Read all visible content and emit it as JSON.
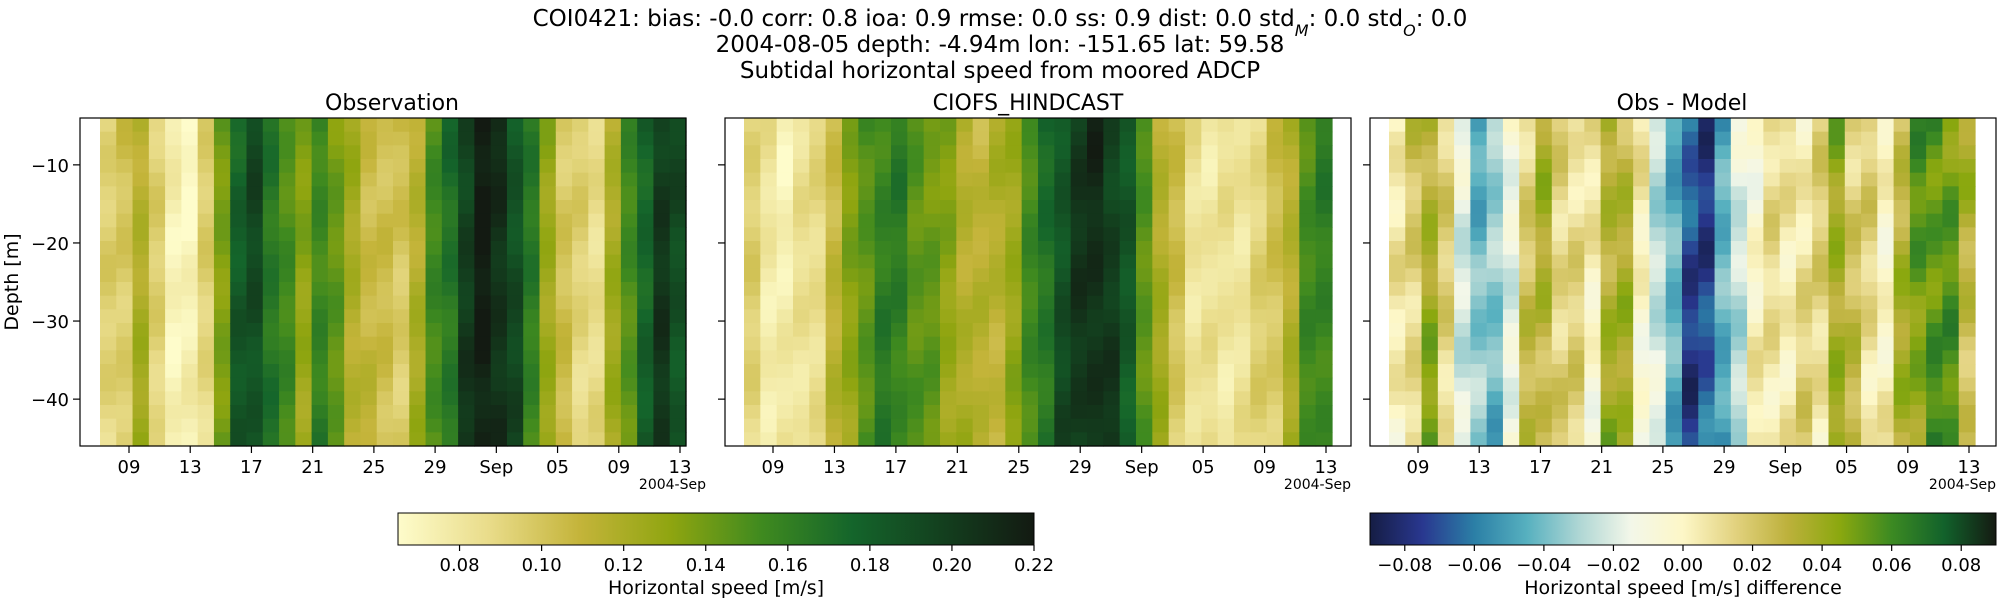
{
  "header": {
    "line1": "COI0421: bias: -0.0  corr: 0.8  ioa: 0.9  rmse: 0.0  ss: 0.9  dist: 0.0  std_M: 0.0  std_O: 0.0",
    "line2": "2004-08-05 depth: -4.94m lon: -151.65 lat: 59.58",
    "line3": "Subtidal horizontal speed from moored ADCP"
  },
  "chart_data": [
    {
      "type": "heatmap",
      "title": "Observation",
      "ylabel": "Depth [m]",
      "yticks": [
        -10,
        -20,
        -30,
        -40
      ],
      "ylim": [
        -46,
        -4
      ],
      "xticks": [
        "09",
        "13",
        "17",
        "21",
        "25",
        "29",
        "Sep",
        "05",
        "09",
        "13"
      ],
      "x_offset_label": "2004-Sep",
      "columns": [
        0.09,
        0.1,
        0.12,
        0.09,
        0.075,
        0.07,
        0.09,
        0.14,
        0.18,
        0.19,
        0.17,
        0.15,
        0.13,
        0.16,
        0.14,
        0.12,
        0.11,
        0.1,
        0.1,
        0.12,
        0.15,
        0.17,
        0.2,
        0.215,
        0.21,
        0.19,
        0.16,
        0.13,
        0.1,
        0.09,
        0.09,
        0.12,
        0.15,
        0.18,
        0.2,
        0.19
      ],
      "colorscale": "speed"
    },
    {
      "type": "heatmap",
      "title": "CIOFS_HINDCAST",
      "yticks": [
        -10,
        -20,
        -30,
        -40
      ],
      "ylim": [
        -46,
        -4
      ],
      "xticks": [
        "09",
        "13",
        "17",
        "21",
        "25",
        "29",
        "Sep",
        "05",
        "09",
        "13"
      ],
      "x_offset_label": "2004-Sep",
      "columns": [
        0.09,
        0.08,
        0.075,
        0.08,
        0.09,
        0.11,
        0.13,
        0.15,
        0.16,
        0.16,
        0.15,
        0.14,
        0.13,
        0.12,
        0.11,
        0.115,
        0.13,
        0.15,
        0.17,
        0.19,
        0.2,
        0.21,
        0.2,
        0.18,
        0.15,
        0.12,
        0.1,
        0.085,
        0.08,
        0.08,
        0.085,
        0.09,
        0.1,
        0.12,
        0.15,
        0.16
      ],
      "colorscale": "speed"
    },
    {
      "type": "heatmap",
      "title": "Obs - Model",
      "yticks": [
        -10,
        -20,
        -30,
        -40
      ],
      "ylim": [
        -46,
        -4
      ],
      "xticks": [
        "09",
        "13",
        "17",
        "21",
        "25",
        "29",
        "Sep",
        "05",
        "09",
        "13"
      ],
      "x_offset_label": "2004-Sep",
      "columns": [
        0.0,
        0.02,
        0.04,
        0.01,
        -0.015,
        -0.04,
        -0.04,
        -0.01,
        0.02,
        0.03,
        0.02,
        0.01,
        0.0,
        0.04,
        0.03,
        0.0,
        -0.02,
        -0.05,
        -0.07,
        -0.07,
        -0.05,
        -0.02,
        0.0,
        0.005,
        0.01,
        0.01,
        0.01,
        0.045,
        0.02,
        0.01,
        0.005,
        0.03,
        0.05,
        0.06,
        0.05,
        0.03
      ],
      "colorscale": "diff"
    }
  ],
  "colorbars": [
    {
      "name": "speed",
      "label": "Horizontal speed [m/s]",
      "range": [
        0.065,
        0.22
      ],
      "ticks": [
        0.08,
        0.1,
        0.12,
        0.14,
        0.16,
        0.18,
        0.2,
        0.22
      ],
      "tick_labels": [
        "0.08",
        "0.10",
        "0.12",
        "0.14",
        "0.16",
        "0.18",
        "0.20",
        "0.22"
      ],
      "colors": [
        "#fefccb",
        "#e9dc8a",
        "#c4b43a",
        "#8fa510",
        "#3f8a1f",
        "#14652b",
        "#133f1e",
        "#131a12"
      ]
    },
    {
      "name": "diff",
      "label": "Horizontal speed [m/s] difference",
      "range": [
        -0.09,
        0.09
      ],
      "ticks": [
        -0.08,
        -0.06,
        -0.04,
        -0.02,
        0.0,
        0.02,
        0.04,
        0.06,
        0.08
      ],
      "tick_labels": [
        "−0.08",
        "−0.06",
        "−0.04",
        "−0.02",
        "0.00",
        "0.02",
        "0.04",
        "0.06",
        "0.08"
      ],
      "colors": [
        "#151d44",
        "#29378f",
        "#2b7fa6",
        "#56b0bf",
        "#aed6d4",
        "#f3f7e9",
        "#fdf7c7",
        "#e2d27f",
        "#bdb13c",
        "#8ba80f",
        "#3c8a22",
        "#12622b",
        "#141a12"
      ]
    }
  ]
}
